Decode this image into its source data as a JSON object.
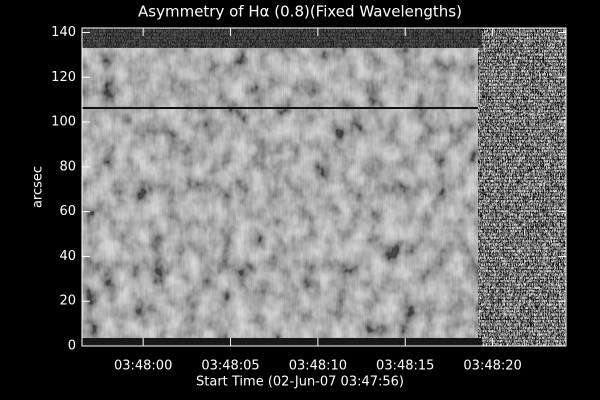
{
  "chart_data": {
    "type": "image",
    "title": "Asymmetry of Hα (0.8)(Fixed Wavelengths)",
    "x_label": "Start Time (02-Jun-07 03:47:56)",
    "y_label": "arcsec",
    "xlim": [
      0.5,
      28.2
    ],
    "xticks": [
      {
        "value": 4,
        "label": "03:48:00"
      },
      {
        "value": 9,
        "label": "03:48:05"
      },
      {
        "value": 14,
        "label": "03:48:10"
      },
      {
        "value": 19,
        "label": "03:48:15"
      },
      {
        "value": 24,
        "label": "03:48:20"
      }
    ],
    "ylim": [
      0,
      142
    ],
    "yticks": [
      0,
      20,
      40,
      60,
      80,
      100,
      120,
      140
    ]
  }
}
